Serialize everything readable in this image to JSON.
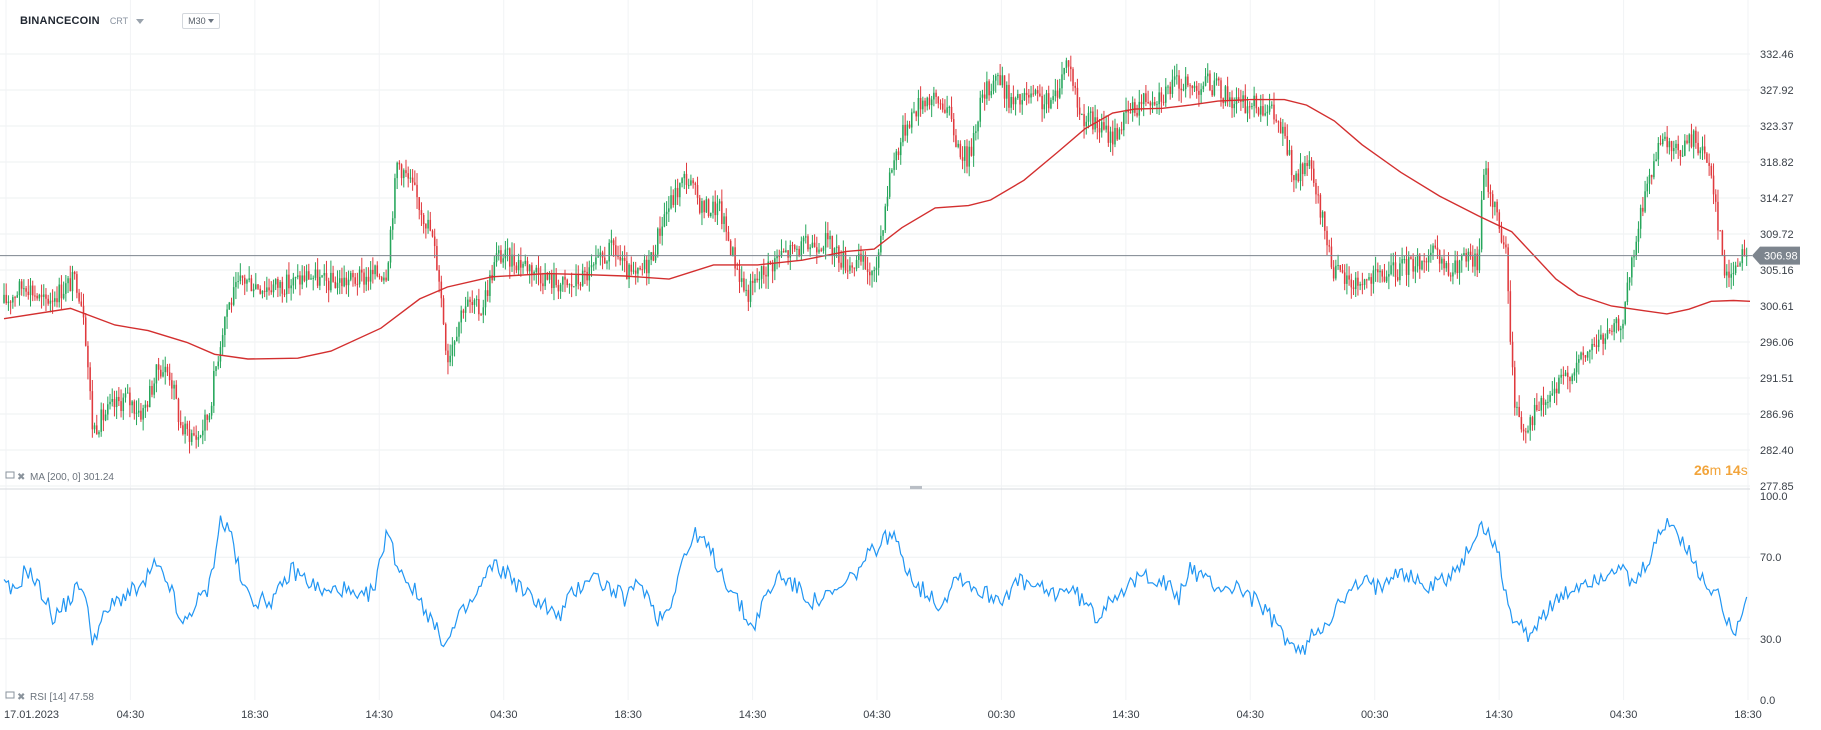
{
  "header": {
    "symbol": "BINANCECOIN",
    "chart_type": "CRT",
    "timeframe": "M30"
  },
  "timer": {
    "minutes": "26",
    "minutes_unit": "m",
    "seconds": "14",
    "seconds_unit": "s"
  },
  "colors": {
    "up": "#26a65b",
    "down": "#e03a3e",
    "sma": "#d32f2f",
    "rsi": "#2196f3",
    "price_tag": "#7d858e"
  },
  "chart_data": [
    {
      "type": "candlestick",
      "interval": "M30",
      "ylim": [
        277.85,
        332.46
      ],
      "y_ticks": [
        "332.46",
        "327.92",
        "323.37",
        "318.82",
        "314.27",
        "309.72",
        "305.16",
        "300.61",
        "296.06",
        "291.51",
        "286.96",
        "282.40",
        "277.85"
      ],
      "x_ticks": [
        "17.01.2023",
        "04:30",
        "18:30",
        "14:30",
        "04:30",
        "18:30",
        "14:30",
        "04:30",
        "00:30",
        "14:30",
        "04:30",
        "00:30",
        "14:30",
        "04:30",
        "18:30"
      ],
      "grid": true,
      "last_price": "306.98",
      "close_path": [
        [
          0,
          301
        ],
        [
          20,
          303.5
        ],
        [
          35,
          301
        ],
        [
          65,
          304
        ],
        [
          72,
          300
        ],
        [
          80,
          285
        ],
        [
          95,
          287.5
        ],
        [
          110,
          289
        ],
        [
          125,
          287
        ],
        [
          140,
          293
        ],
        [
          150,
          292
        ],
        [
          160,
          285
        ],
        [
          175,
          284
        ],
        [
          185,
          287
        ],
        [
          190,
          292
        ],
        [
          200,
          300
        ],
        [
          215,
          304
        ],
        [
          235,
          303
        ],
        [
          260,
          303.5
        ],
        [
          275,
          304.5
        ],
        [
          290,
          303.5
        ],
        [
          320,
          304
        ],
        [
          345,
          305
        ],
        [
          355,
          319
        ],
        [
          370,
          315
        ],
        [
          385,
          310
        ],
        [
          392,
          305
        ],
        [
          400,
          294
        ],
        [
          415,
          301
        ],
        [
          430,
          300
        ],
        [
          445,
          307
        ],
        [
          470,
          306
        ],
        [
          490,
          304
        ],
        [
          510,
          303
        ],
        [
          530,
          305
        ],
        [
          550,
          308
        ],
        [
          560,
          305
        ],
        [
          570,
          304
        ],
        [
          585,
          307
        ],
        [
          595,
          312
        ],
        [
          615,
          317
        ],
        [
          630,
          313
        ],
        [
          645,
          313
        ],
        [
          660,
          306
        ],
        [
          670,
          302
        ],
        [
          685,
          305
        ],
        [
          700,
          307
        ],
        [
          720,
          308
        ],
        [
          740,
          309
        ],
        [
          760,
          306
        ],
        [
          775,
          306
        ],
        [
          785,
          304
        ],
        [
          800,
          318
        ],
        [
          815,
          324
        ],
        [
          830,
          327
        ],
        [
          850,
          326
        ],
        [
          860,
          321
        ],
        [
          870,
          319
        ],
        [
          880,
          326
        ],
        [
          895,
          330
        ],
        [
          910,
          326
        ],
        [
          925,
          327
        ],
        [
          945,
          326
        ],
        [
          960,
          332
        ],
        [
          970,
          325
        ],
        [
          980,
          324
        ],
        [
          990,
          323
        ],
        [
          1000,
          322
        ],
        [
          1015,
          325
        ],
        [
          1030,
          327
        ],
        [
          1045,
          327.5
        ],
        [
          1060,
          329
        ],
        [
          1070,
          328
        ],
        [
          1085,
          329
        ],
        [
          1095,
          328
        ],
        [
          1105,
          327
        ],
        [
          1115,
          326
        ],
        [
          1125,
          326
        ],
        [
          1140,
          326
        ],
        [
          1155,
          322
        ],
        [
          1165,
          316
        ],
        [
          1175,
          319
        ],
        [
          1185,
          314
        ],
        [
          1200,
          305
        ],
        [
          1215,
          303.5
        ],
        [
          1235,
          304
        ],
        [
          1255,
          305
        ],
        [
          1270,
          306
        ],
        [
          1290,
          307
        ],
        [
          1305,
          304.5
        ],
        [
          1315,
          306.5
        ],
        [
          1330,
          306
        ],
        [
          1335,
          318
        ],
        [
          1345,
          313
        ],
        [
          1355,
          307
        ],
        [
          1362,
          289
        ],
        [
          1370,
          285
        ],
        [
          1380,
          287
        ],
        [
          1395,
          289
        ],
        [
          1410,
          292
        ],
        [
          1425,
          294
        ],
        [
          1435,
          296
        ],
        [
          1450,
          297
        ],
        [
          1460,
          299
        ],
        [
          1480,
          315
        ],
        [
          1495,
          321
        ],
        [
          1510,
          320
        ],
        [
          1525,
          322
        ],
        [
          1540,
          318
        ],
        [
          1553,
          304
        ],
        [
          1562,
          306
        ],
        [
          1572,
          307
        ]
      ],
      "series": [
        {
          "name": "MA [200, 0] 301.24",
          "type": "line",
          "color": "#d32f2f",
          "points": [
            [
              0,
              299
            ],
            [
              60,
              300.3
            ],
            [
              100,
              298.2
            ],
            [
              130,
              297.5
            ],
            [
              165,
              296
            ],
            [
              190,
              294.5
            ],
            [
              220,
              293.9
            ],
            [
              265,
              294
            ],
            [
              295,
              294.9
            ],
            [
              340,
              297.8
            ],
            [
              375,
              301.5
            ],
            [
              400,
              303
            ],
            [
              440,
              304.3
            ],
            [
              490,
              304.7
            ],
            [
              520,
              304.6
            ],
            [
              560,
              304.4
            ],
            [
              600,
              304
            ],
            [
              640,
              305.8
            ],
            [
              680,
              305.8
            ],
            [
              720,
              306.4
            ],
            [
              760,
              307.5
            ],
            [
              785,
              307.8
            ],
            [
              810,
              310.5
            ],
            [
              840,
              313
            ],
            [
              870,
              313.3
            ],
            [
              890,
              314
            ],
            [
              920,
              316.5
            ],
            [
              950,
              320
            ],
            [
              975,
              323
            ],
            [
              1000,
              325
            ],
            [
              1020,
              325.5
            ],
            [
              1045,
              325.6
            ],
            [
              1070,
              326
            ],
            [
              1095,
              326.5
            ],
            [
              1125,
              326.7
            ],
            [
              1155,
              326.7
            ],
            [
              1175,
              326
            ],
            [
              1200,
              324
            ],
            [
              1225,
              321
            ],
            [
              1260,
              317.5
            ],
            [
              1295,
              314.5
            ],
            [
              1330,
              312
            ],
            [
              1360,
              310
            ],
            [
              1400,
              304
            ],
            [
              1420,
              302
            ],
            [
              1450,
              300.6
            ],
            [
              1480,
              300
            ],
            [
              1500,
              299.6
            ],
            [
              1520,
              300.2
            ],
            [
              1540,
              301.2
            ],
            [
              1560,
              301.3
            ],
            [
              1575,
              301.2
            ]
          ]
        }
      ]
    },
    {
      "type": "line",
      "name": "RSI [14] 47.58",
      "ylim": [
        0,
        100
      ],
      "y_ticks": [
        "100.0",
        "70.0",
        "30.0",
        "0.0"
      ],
      "series": [
        {
          "name": "RSI [14] 47.58",
          "color": "#2196f3",
          "values_path": [
            [
              0,
              56
            ],
            [
              10,
              52
            ],
            [
              20,
              65
            ],
            [
              35,
              52
            ],
            [
              45,
              40
            ],
            [
              60,
              50
            ],
            [
              70,
              58
            ],
            [
              80,
              30
            ],
            [
              95,
              45
            ],
            [
              110,
              52
            ],
            [
              125,
              55
            ],
            [
              135,
              66
            ],
            [
              150,
              56
            ],
            [
              160,
              35
            ],
            [
              170,
              45
            ],
            [
              185,
              55
            ],
            [
              195,
              88
            ],
            [
              205,
              82
            ],
            [
              215,
              55
            ],
            [
              230,
              48
            ],
            [
              245,
              50
            ],
            [
              260,
              64
            ],
            [
              275,
              58
            ],
            [
              290,
              52
            ],
            [
              305,
              55
            ],
            [
              320,
              48
            ],
            [
              335,
              55
            ],
            [
              345,
              84
            ],
            [
              355,
              66
            ],
            [
              365,
              58
            ],
            [
              380,
              45
            ],
            [
              392,
              32
            ],
            [
              400,
              28
            ],
            [
              410,
              40
            ],
            [
              425,
              50
            ],
            [
              440,
              66
            ],
            [
              455,
              62
            ],
            [
              470,
              52
            ],
            [
              485,
              48
            ],
            [
              500,
              40
            ],
            [
              510,
              50
            ],
            [
              530,
              62
            ],
            [
              545,
              55
            ],
            [
              560,
              50
            ],
            [
              575,
              58
            ],
            [
              590,
              40
            ],
            [
              600,
              45
            ],
            [
              610,
              66
            ],
            [
              625,
              82
            ],
            [
              640,
              70
            ],
            [
              655,
              55
            ],
            [
              665,
              45
            ],
            [
              675,
              35
            ],
            [
              685,
              48
            ],
            [
              700,
              62
            ],
            [
              715,
              55
            ],
            [
              730,
              48
            ],
            [
              750,
              52
            ],
            [
              765,
              60
            ],
            [
              785,
              74
            ],
            [
              800,
              82
            ],
            [
              815,
              65
            ],
            [
              825,
              55
            ],
            [
              835,
              52
            ],
            [
              845,
              46
            ],
            [
              860,
              62
            ],
            [
              875,
              55
            ],
            [
              885,
              52
            ],
            [
              900,
              50
            ],
            [
              915,
              58
            ],
            [
              930,
              55
            ],
            [
              945,
              52
            ],
            [
              960,
              55
            ],
            [
              975,
              48
            ],
            [
              985,
              40
            ],
            [
              1000,
              52
            ],
            [
              1015,
              55
            ],
            [
              1030,
              62
            ],
            [
              1045,
              58
            ],
            [
              1060,
              50
            ],
            [
              1070,
              65
            ],
            [
              1085,
              58
            ],
            [
              1100,
              55
            ],
            [
              1115,
              55
            ],
            [
              1130,
              48
            ],
            [
              1140,
              42
            ],
            [
              1150,
              35
            ],
            [
              1160,
              28
            ],
            [
              1170,
              22
            ],
            [
              1180,
              32
            ],
            [
              1195,
              40
            ],
            [
              1210,
              50
            ],
            [
              1225,
              58
            ],
            [
              1240,
              55
            ],
            [
              1255,
              65
            ],
            [
              1270,
              60
            ],
            [
              1285,
              55
            ],
            [
              1300,
              60
            ],
            [
              1315,
              66
            ],
            [
              1330,
              85
            ],
            [
              1345,
              78
            ],
            [
              1360,
              40
            ],
            [
              1375,
              32
            ],
            [
              1385,
              40
            ],
            [
              1395,
              45
            ],
            [
              1410,
              52
            ],
            [
              1425,
              58
            ],
            [
              1440,
              60
            ],
            [
              1455,
              66
            ],
            [
              1470,
              55
            ],
            [
              1485,
              70
            ],
            [
              1500,
              88
            ],
            [
              1515,
              78
            ],
            [
              1530,
              60
            ],
            [
              1545,
              52
            ],
            [
              1555,
              40
            ],
            [
              1562,
              35
            ],
            [
              1568,
              45
            ],
            [
              1572,
              48
            ]
          ]
        }
      ]
    }
  ],
  "indicators": {
    "ma_label": "MA [200, 0] 301.24",
    "rsi_label": "RSI [14] 47.58"
  }
}
